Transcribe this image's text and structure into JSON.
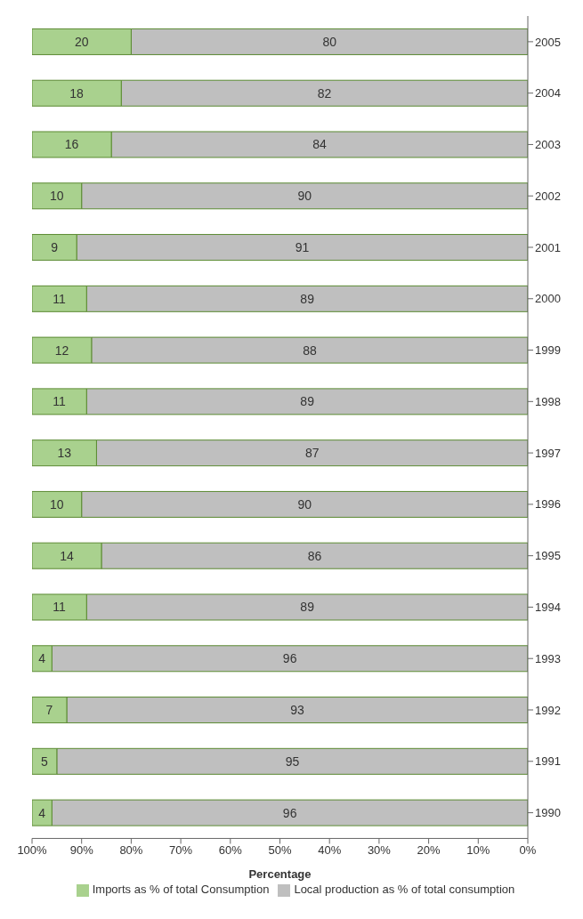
{
  "chart_data": {
    "type": "bar",
    "orientation": "horizontal",
    "stacked": true,
    "xlabel": "Percentage",
    "categories": [
      "2005",
      "2004",
      "2003",
      "2002",
      "2001",
      "2000",
      "1999",
      "1998",
      "1997",
      "1996",
      "1995",
      "1994",
      "1993",
      "1992",
      "1991",
      "1990"
    ],
    "series": [
      {
        "name": "Local production as % of total consumption",
        "color": "#bfbfbf",
        "values": [
          80,
          82,
          84,
          90,
          91,
          89,
          88,
          89,
          87,
          90,
          86,
          89,
          96,
          93,
          95,
          96
        ]
      },
      {
        "name": "Imports as % of total Consumption",
        "color": "#a9d18e",
        "values": [
          20,
          18,
          16,
          10,
          9,
          11,
          12,
          11,
          13,
          10,
          14,
          11,
          4,
          7,
          5,
          4
        ]
      }
    ],
    "xlim": [
      100,
      0
    ],
    "xticks": [
      {
        "value": 100,
        "label": "100%"
      },
      {
        "value": 90,
        "label": "90%"
      },
      {
        "value": 80,
        "label": "80%"
      },
      {
        "value": 70,
        "label": "70%"
      },
      {
        "value": 60,
        "label": "60%"
      },
      {
        "value": 50,
        "label": "50%"
      },
      {
        "value": 40,
        "label": "40%"
      },
      {
        "value": 30,
        "label": "30%"
      },
      {
        "value": 20,
        "label": "20%"
      },
      {
        "value": 10,
        "label": "10%"
      },
      {
        "value": 0,
        "label": "0%"
      }
    ],
    "data_labels": true,
    "legend": "bottom",
    "grid": false
  }
}
